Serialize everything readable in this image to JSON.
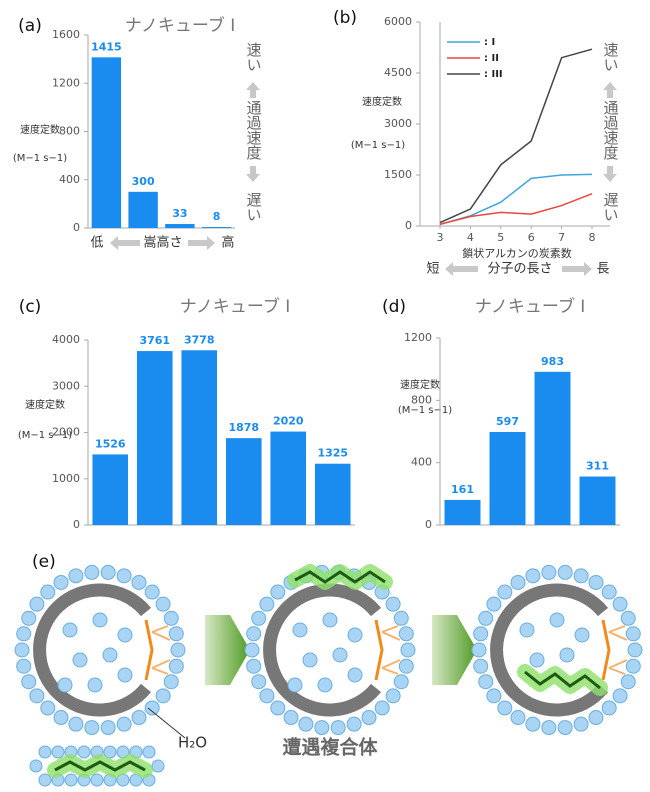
{
  "chart_data": [
    {
      "type": "bar",
      "label": "(a)",
      "title": "ナノキューブ I",
      "y_label": "速度定数",
      "y_unit": "(M−1 s−1)",
      "categories": [
        null,
        null,
        null,
        null
      ],
      "values": [
        1415,
        300,
        33,
        8
      ],
      "color": "#1a8cf0",
      "ylim": [
        0,
        1600
      ],
      "yticks": [
        0,
        400,
        800,
        1200,
        1600
      ],
      "x_annotations": [
        "低",
        "嵩高さ",
        "高"
      ],
      "side_annotations": [
        "速い",
        "通過速度",
        "遅い"
      ]
    },
    {
      "type": "line",
      "label": "(b)",
      "y_label": "速度定数",
      "y_unit": "(M−1 s−1)",
      "x_label": "鎖状アルカンの炭素数",
      "x": [
        3,
        4,
        5,
        6,
        7,
        8
      ],
      "xlim": [
        3,
        8
      ],
      "xticks": [
        3,
        4,
        5,
        6,
        7,
        8
      ],
      "ylim": [
        0,
        6000
      ],
      "yticks": [
        0,
        1500,
        3000,
        4500,
        6000
      ],
      "series": [
        {
          "name": ": I",
          "color": "#3fa3e0",
          "values": [
            50,
            300,
            700,
            1400,
            1500,
            1520
          ]
        },
        {
          "name": ": II",
          "color": "#e8473d",
          "values": [
            50,
            280,
            400,
            350,
            600,
            950
          ]
        },
        {
          "name": ": III",
          "color": "#444444",
          "values": [
            100,
            500,
            1800,
            2500,
            4950,
            5200
          ]
        }
      ],
      "x_annotations": [
        "短",
        "分子の長さ",
        "長"
      ],
      "side_annotations": [
        "速い",
        "通過速度",
        "遅い"
      ]
    },
    {
      "type": "bar",
      "label": "(c)",
      "title": "ナノキューブ I",
      "y_label": "速度定数",
      "y_unit": "(M−1 s−1)",
      "categories": [
        null,
        null,
        null,
        null,
        null,
        null
      ],
      "values": [
        1526,
        3761,
        3778,
        1878,
        2020,
        1325
      ],
      "color": "#1a8cf0",
      "ylim": [
        0,
        4000
      ],
      "yticks": [
        0,
        1000,
        2000,
        3000,
        4000
      ]
    },
    {
      "type": "bar",
      "label": "(d)",
      "title": "ナノキューブ I",
      "y_label": "速度定数",
      "y_unit": "(M−1 s−1)",
      "categories": [
        null,
        null,
        null,
        null
      ],
      "values": [
        161,
        597,
        983,
        311
      ],
      "color": "#1a8cf0",
      "ylim": [
        0,
        1200
      ],
      "yticks": [
        0,
        400,
        800,
        1200
      ]
    }
  ],
  "diagram": {
    "label": "(e)",
    "water": "H₂O",
    "caption": "遭遇複合体"
  }
}
